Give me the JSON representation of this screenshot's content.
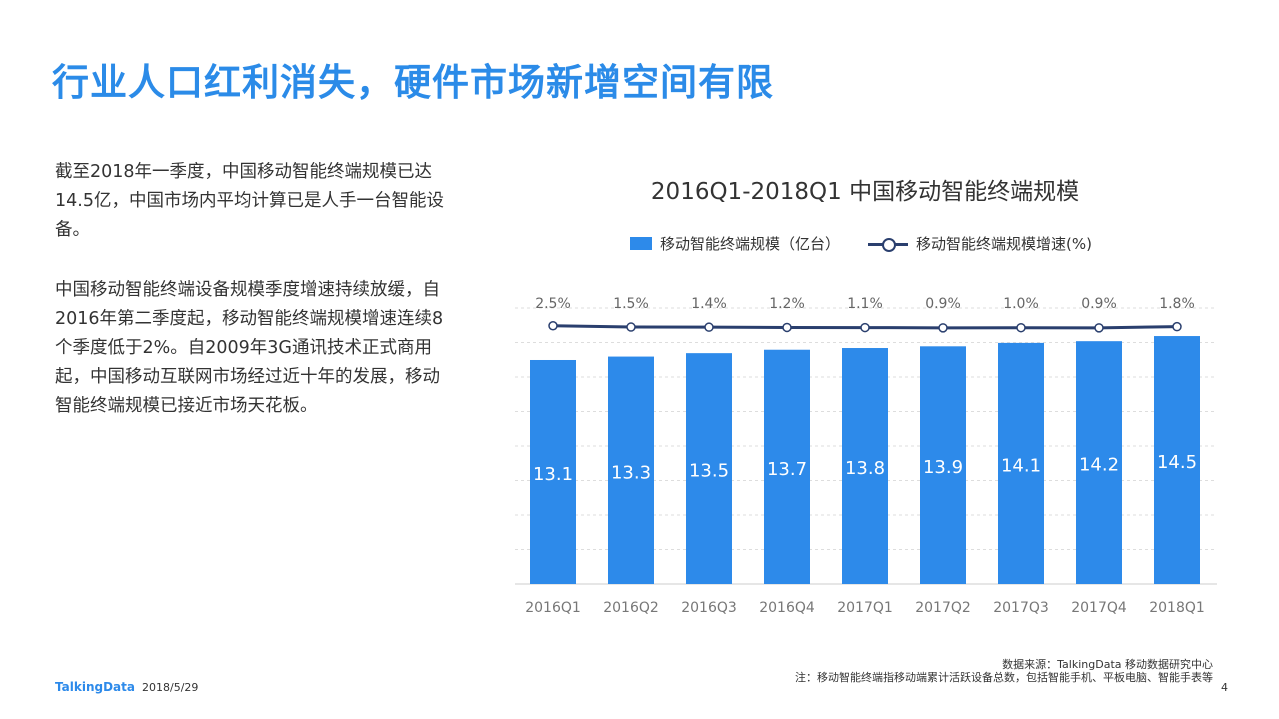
{
  "title": "行业人口红利消失，硬件市场新增空间有限",
  "paragraphs": [
    "截至2018年一季度，中国移动智能终端规模已达14.5亿，中国市场内平均计算已是人手一台智能设备。",
    "中国移动智能终端设备规模季度增速持续放缓，自2016年第二季度起，移动智能终端规模增速连续8个季度低于2%。自2009年3G通讯技术正式商用起，中国移动互联网市场经过近十年的发展，移动智能终端规模已接近市场天花板。"
  ],
  "chart_data": {
    "type": "bar",
    "title": "2016Q1-2018Q1 中国移动智能终端规模",
    "categories": [
      "2016Q1",
      "2016Q2",
      "2016Q3",
      "2016Q4",
      "2017Q1",
      "2017Q2",
      "2017Q3",
      "2017Q4",
      "2018Q1"
    ],
    "series": [
      {
        "name": "移动智能终端规模（亿台）",
        "type": "bar",
        "values": [
          13.1,
          13.3,
          13.5,
          13.7,
          13.8,
          13.9,
          14.1,
          14.2,
          14.5
        ],
        "color": "#2d8aea"
      },
      {
        "name": "移动智能终端规模增速(%)",
        "type": "line",
        "values": [
          2.5,
          1.5,
          1.4,
          1.2,
          1.1,
          0.9,
          1.0,
          0.9,
          1.8
        ],
        "labels": [
          "2.5%",
          "1.5%",
          "1.4%",
          "1.2%",
          "1.1%",
          "0.9%",
          "1.0%",
          "0.9%",
          "1.8%"
        ],
        "color": "#2a3f6e"
      }
    ],
    "legend": "top",
    "grid": true
  },
  "footer": {
    "brand": "TalkingData",
    "date": "2018/5/29",
    "source": "数据来源：TalkingData 移动数据研究中心",
    "note": "注：移动智能终端指移动端累计活跃设备总数，包括智能手机、平板电脑、智能手表等",
    "page": "4"
  }
}
